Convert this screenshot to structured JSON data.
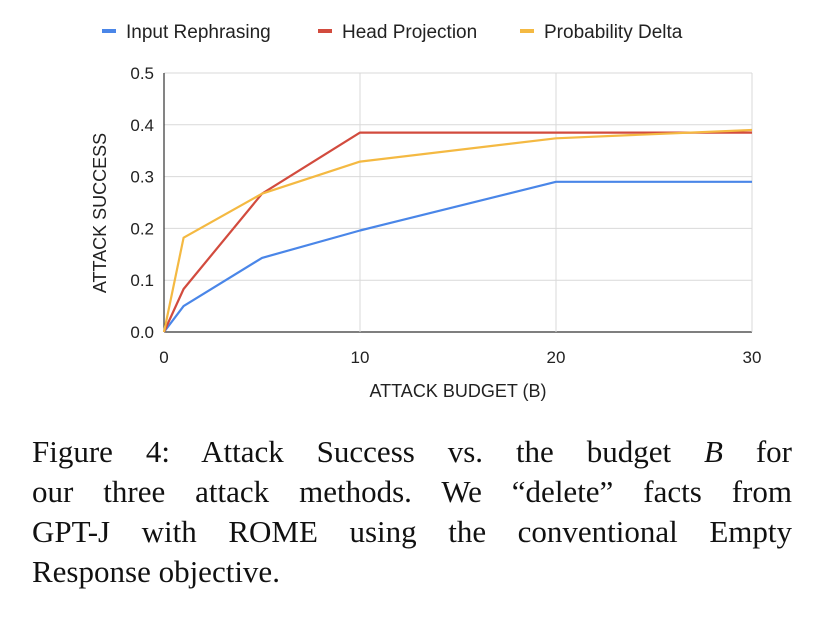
{
  "chart_data": {
    "type": "line",
    "title": "",
    "xlabel": "ATTACK BUDGET (B)",
    "ylabel": "ATTACK SUCCESS",
    "xlim": [
      0,
      30
    ],
    "ylim": [
      0,
      0.5
    ],
    "xticks": [
      "0",
      "10",
      "20",
      "30"
    ],
    "yticks": [
      "0.0",
      "0.1",
      "0.2",
      "0.3",
      "0.4",
      "0.5"
    ],
    "grid": true,
    "legend_position": "top",
    "series": [
      {
        "name": "Input Rephrasing",
        "color": "#4a86e8",
        "x": [
          0,
          1,
          5,
          10,
          20,
          30
        ],
        "y": [
          0.0,
          0.05,
          0.143,
          0.196,
          0.29,
          0.29
        ]
      },
      {
        "name": "Head Projection",
        "color": "#d24b3e",
        "x": [
          0,
          1,
          5,
          10,
          20,
          30
        ],
        "y": [
          0.0,
          0.083,
          0.267,
          0.385,
          0.385,
          0.385
        ]
      },
      {
        "name": "Probability Delta",
        "color": "#f4b942",
        "x": [
          0,
          1,
          5,
          10,
          20,
          30
        ],
        "y": [
          0.0,
          0.182,
          0.267,
          0.329,
          0.374,
          0.39
        ]
      }
    ]
  },
  "caption": {
    "lines": [
      [
        "Figure 4:  Attack Success vs.  the budget ",
        "B",
        " for"
      ],
      [
        "our three attack methods. We “delete” facts from"
      ],
      [
        "GPT-J with ROME using the conventional Empty"
      ],
      [
        "Response objective."
      ]
    ]
  }
}
